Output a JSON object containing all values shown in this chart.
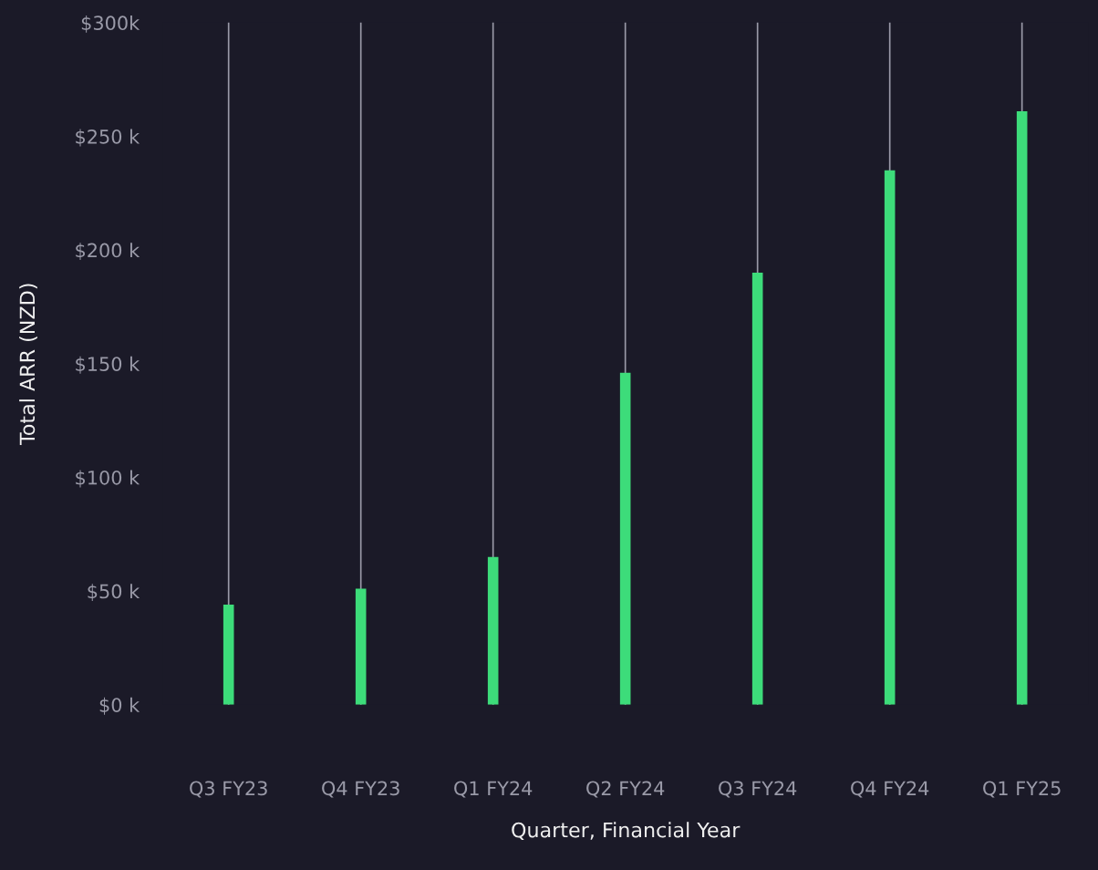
{
  "chart_data": {
    "type": "bar",
    "xlabel": "Quarter, Financial Year",
    "ylabel": "Total ARR (NZD)",
    "categories": [
      "Q3 FY23",
      "Q4 FY23",
      "Q1 FY24",
      "Q2 FY24",
      "Q3 FY24",
      "Q4 FY24",
      "Q1 FY25"
    ],
    "values": [
      44,
      51,
      65,
      146,
      190,
      235,
      261
    ],
    "color": "#3ddc7a",
    "ylim": [
      0,
      300
    ],
    "yticks": [
      {
        "value": 0,
        "label": "$0 k"
      },
      {
        "value": 50,
        "label": "$50 k"
      },
      {
        "value": 100,
        "label": "$100 k"
      },
      {
        "value": 150,
        "label": "$150 k"
      },
      {
        "value": 200,
        "label": "$200 k"
      },
      {
        "value": 250,
        "label": "$250 k"
      },
      {
        "value": 300,
        "label": "$300k"
      }
    ],
    "grid": "x",
    "legend": false
  }
}
